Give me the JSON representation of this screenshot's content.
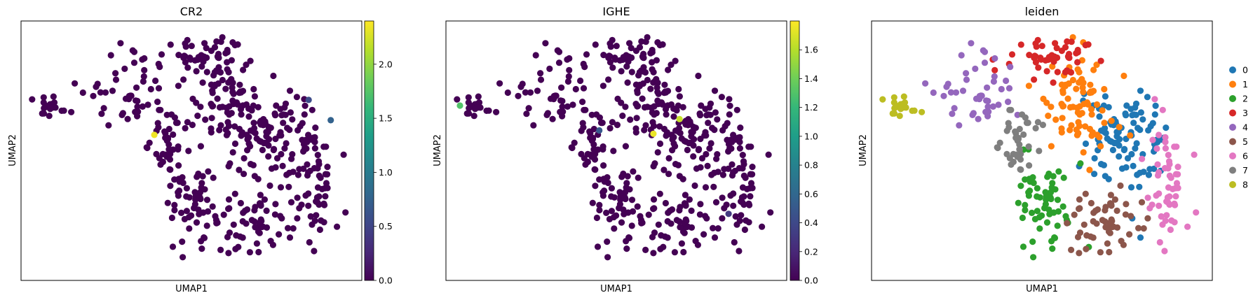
{
  "chart_data": [
    {
      "type": "scatter",
      "title": "CR2",
      "xlabel": "UMAP1",
      "ylabel": "UMAP2",
      "color_scale": "viridis",
      "colorbar": {
        "range": [
          0,
          2.4
        ],
        "ticks": [
          0.0,
          0.5,
          1.0,
          1.5,
          2.0
        ],
        "tick_labels": [
          "0.0",
          "0.5",
          "1.0",
          "1.5",
          "2.0"
        ]
      },
      "points": [
        {
          "x": 12.3,
          "y": 11.9,
          "value": 2.35
        },
        {
          "x": 27.7,
          "y": 15.0,
          "value": 0.55
        },
        {
          "x": 29.9,
          "y": 13.2,
          "value": 0.75
        }
      ],
      "note": "remaining cells have value 0"
    },
    {
      "type": "scatter",
      "title": "IGHE",
      "xlabel": "UMAP1",
      "ylabel": "UMAP2",
      "color_scale": "viridis",
      "colorbar": {
        "range": [
          0,
          1.8
        ],
        "ticks": [
          0.0,
          0.2,
          0.4,
          0.6,
          0.8,
          1.0,
          1.2,
          1.4,
          1.6
        ],
        "tick_labels": [
          "0.0",
          "0.2",
          "0.4",
          "0.6",
          "0.8",
          "1.0",
          "1.2",
          "1.4",
          "1.6"
        ]
      },
      "points": [
        {
          "x": 0.4,
          "y": 14.5,
          "value": 1.3
        },
        {
          "x": 19.7,
          "y": 12.0,
          "value": 1.75
        },
        {
          "x": 22.3,
          "y": 13.3,
          "value": 1.65
        },
        {
          "x": 14.3,
          "y": 12.3,
          "value": 0.5
        },
        {
          "x": 27.2,
          "y": 4.9,
          "value": 0.3
        }
      ],
      "note": "remaining cells have value 0"
    },
    {
      "type": "scatter",
      "title": "leiden",
      "xlabel": "UMAP1",
      "ylabel": "UMAP2",
      "legend": {
        "position": "right",
        "entries": [
          {
            "label": "0",
            "color": "#1f77b4"
          },
          {
            "label": "1",
            "color": "#ff7f0e"
          },
          {
            "label": "2",
            "color": "#2ca02c"
          },
          {
            "label": "3",
            "color": "#d62728"
          },
          {
            "label": "4",
            "color": "#9467bd"
          },
          {
            "label": "5",
            "color": "#8c564b"
          },
          {
            "label": "6",
            "color": "#e377c2"
          },
          {
            "label": "7",
            "color": "#7f7f7f"
          },
          {
            "label": "8",
            "color": "#bcbd22"
          }
        ]
      }
    }
  ],
  "colors": {
    "zero_value": "#440154",
    "viridis": [
      "#440154",
      "#482878",
      "#3e4989",
      "#31688e",
      "#26828e",
      "#1f9e89",
      "#35b779",
      "#6ece58",
      "#b5de2b",
      "#fde725"
    ]
  }
}
